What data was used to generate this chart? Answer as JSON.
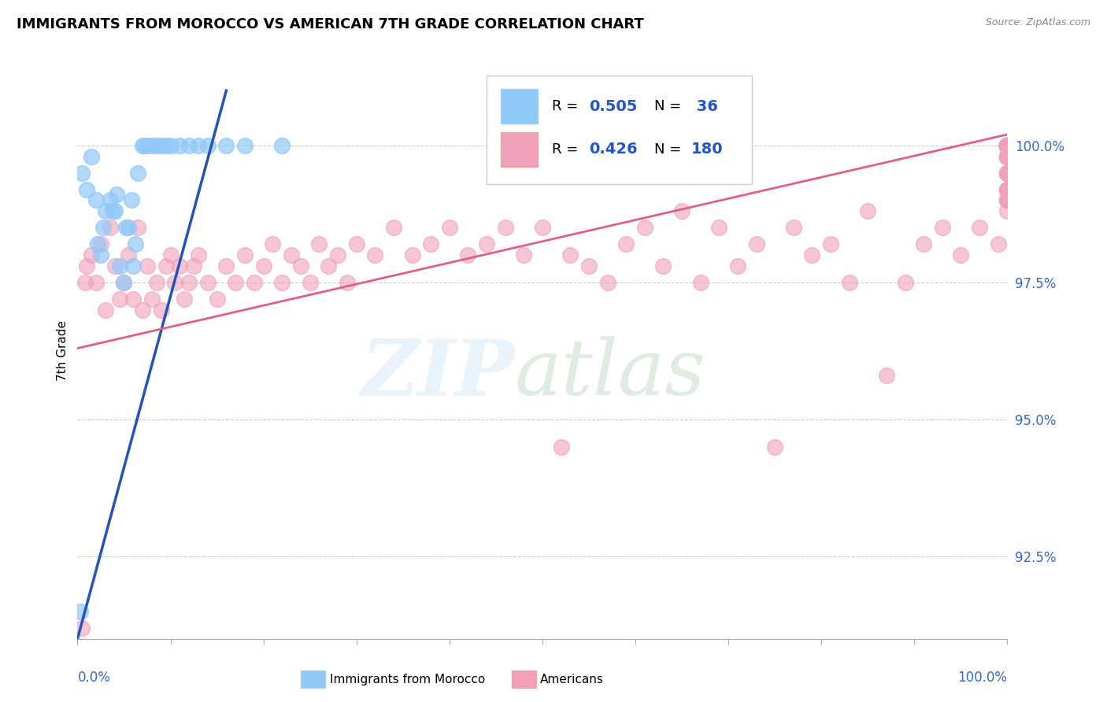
{
  "title": "IMMIGRANTS FROM MOROCCO VS AMERICAN 7TH GRADE CORRELATION CHART",
  "source": "Source: ZipAtlas.com",
  "ylabel": "7th Grade",
  "xlim": [
    0.0,
    100.0
  ],
  "ylim": [
    91.0,
    101.5
  ],
  "legend_r1": "0.505",
  "legend_n1": " 36",
  "legend_r2": "0.426",
  "legend_n2": "180",
  "blue_color": "#90c8f8",
  "pink_color": "#f0a0b8",
  "blue_trend_color": "#2255bb",
  "pink_trend_color": "#e06080",
  "ytick_vals": [
    92.5,
    95.0,
    97.5,
    100.0
  ],
  "ytick_labels": [
    "92.5%",
    "95.0%",
    "97.5%",
    "100.0%"
  ],
  "blue_x": [
    0.3,
    0.5,
    1.0,
    1.5,
    2.0,
    2.8,
    3.5,
    4.0,
    4.5,
    5.0,
    5.5,
    6.0,
    6.5,
    7.0,
    7.5,
    8.0,
    9.0,
    10.0,
    11.0,
    13.0,
    14.0,
    18.0,
    2.2,
    2.5,
    3.0,
    3.8,
    4.2,
    5.2,
    5.8,
    6.2,
    7.2,
    8.5,
    9.5,
    12.0,
    16.0,
    22.0
  ],
  "blue_y": [
    91.5,
    99.5,
    99.2,
    99.8,
    99.0,
    98.5,
    99.0,
    98.8,
    97.8,
    97.5,
    98.5,
    97.8,
    99.5,
    100.0,
    100.0,
    100.0,
    100.0,
    100.0,
    100.0,
    100.0,
    100.0,
    100.0,
    98.2,
    98.0,
    98.8,
    98.8,
    99.1,
    98.5,
    99.0,
    98.2,
    100.0,
    100.0,
    100.0,
    100.0,
    100.0,
    100.0
  ],
  "pink_x": [
    0.5,
    0.8,
    1.0,
    1.5,
    2.0,
    2.5,
    3.0,
    3.5,
    4.0,
    4.5,
    5.0,
    5.5,
    6.0,
    6.5,
    7.0,
    7.5,
    8.0,
    8.5,
    9.0,
    9.5,
    10.0,
    10.5,
    11.0,
    11.5,
    12.0,
    12.5,
    13.0,
    14.0,
    15.0,
    16.0,
    17.0,
    18.0,
    19.0,
    20.0,
    21.0,
    22.0,
    23.0,
    24.0,
    25.0,
    26.0,
    27.0,
    28.0,
    29.0,
    30.0,
    32.0,
    34.0,
    36.0,
    38.0,
    40.0,
    42.0,
    44.0,
    46.0,
    48.0,
    50.0,
    52.0,
    53.0,
    55.0,
    57.0,
    59.0,
    61.0,
    63.0,
    65.0,
    67.0,
    69.0,
    71.0,
    73.0,
    75.0,
    77.0,
    79.0,
    81.0,
    83.0,
    85.0,
    87.0,
    89.0,
    91.0,
    93.0,
    95.0,
    97.0,
    99.0,
    100.0,
    100.0,
    100.0,
    100.0,
    100.0,
    100.0,
    100.0,
    100.0,
    100.0,
    100.0,
    100.0,
    100.0,
    100.0,
    100.0,
    100.0,
    100.0,
    100.0,
    100.0,
    100.0,
    100.0,
    100.0,
    100.0,
    100.0,
    100.0,
    100.0,
    100.0,
    100.0,
    100.0,
    100.0,
    100.0,
    100.0,
    100.0,
    100.0,
    100.0,
    100.0,
    100.0,
    100.0,
    100.0,
    100.0,
    100.0,
    100.0,
    100.0,
    100.0,
    100.0,
    100.0,
    100.0,
    100.0,
    100.0,
    100.0,
    100.0,
    100.0,
    100.0,
    100.0,
    100.0,
    100.0,
    100.0,
    100.0,
    100.0,
    100.0,
    100.0,
    100.0,
    100.0,
    100.0,
    100.0,
    100.0,
    100.0,
    100.0,
    100.0,
    100.0,
    100.0,
    100.0,
    100.0,
    100.0,
    100.0,
    100.0,
    100.0,
    100.0,
    100.0,
    100.0,
    100.0,
    100.0,
    100.0,
    100.0,
    100.0,
    100.0
  ],
  "pink_y": [
    91.2,
    97.5,
    97.8,
    98.0,
    97.5,
    98.2,
    97.0,
    98.5,
    97.8,
    97.2,
    97.5,
    98.0,
    97.2,
    98.5,
    97.0,
    97.8,
    97.2,
    97.5,
    97.0,
    97.8,
    98.0,
    97.5,
    97.8,
    97.2,
    97.5,
    97.8,
    98.0,
    97.5,
    97.2,
    97.8,
    97.5,
    98.0,
    97.5,
    97.8,
    98.2,
    97.5,
    98.0,
    97.8,
    97.5,
    98.2,
    97.8,
    98.0,
    97.5,
    98.2,
    98.0,
    98.5,
    98.0,
    98.2,
    98.5,
    98.0,
    98.2,
    98.5,
    98.0,
    98.5,
    94.5,
    98.0,
    97.8,
    97.5,
    98.2,
    98.5,
    97.8,
    98.8,
    97.5,
    98.5,
    97.8,
    98.2,
    94.5,
    98.5,
    98.0,
    98.2,
    97.5,
    98.8,
    95.8,
    97.5,
    98.2,
    98.5,
    98.0,
    98.5,
    98.2,
    99.0,
    99.2,
    99.0,
    98.8,
    99.2,
    99.0,
    99.5,
    99.2,
    99.0,
    99.5,
    99.2,
    99.5,
    99.8,
    99.5,
    99.8,
    100.0,
    99.8,
    100.0,
    99.5,
    100.0,
    99.8,
    100.0,
    99.8,
    100.0,
    99.8,
    100.0,
    100.0,
    99.8,
    100.0,
    100.0,
    100.0,
    100.0,
    100.0,
    100.0,
    100.0,
    100.0,
    100.0,
    100.0,
    100.0,
    100.0,
    100.0,
    100.0,
    100.0,
    100.0,
    100.0,
    100.0,
    100.0,
    100.0,
    100.0,
    100.0,
    100.0,
    100.0,
    100.0,
    100.0,
    100.0,
    100.0,
    100.0,
    100.0,
    100.0,
    100.0,
    100.0,
    100.0,
    100.0,
    100.0,
    100.0,
    100.0,
    100.0,
    100.0,
    100.0,
    100.0,
    100.0,
    100.0,
    100.0,
    100.0,
    100.0,
    100.0,
    100.0,
    100.0,
    100.0,
    100.0,
    100.0,
    100.0,
    100.0,
    100.0,
    100.0
  ],
  "blue_trend_x0": 0.0,
  "blue_trend_y0": 91.0,
  "blue_trend_x1": 16.0,
  "blue_trend_y1": 101.0,
  "pink_trend_x0": 0.0,
  "pink_trend_y0": 96.3,
  "pink_trend_x1": 100.0,
  "pink_trend_y1": 100.2
}
